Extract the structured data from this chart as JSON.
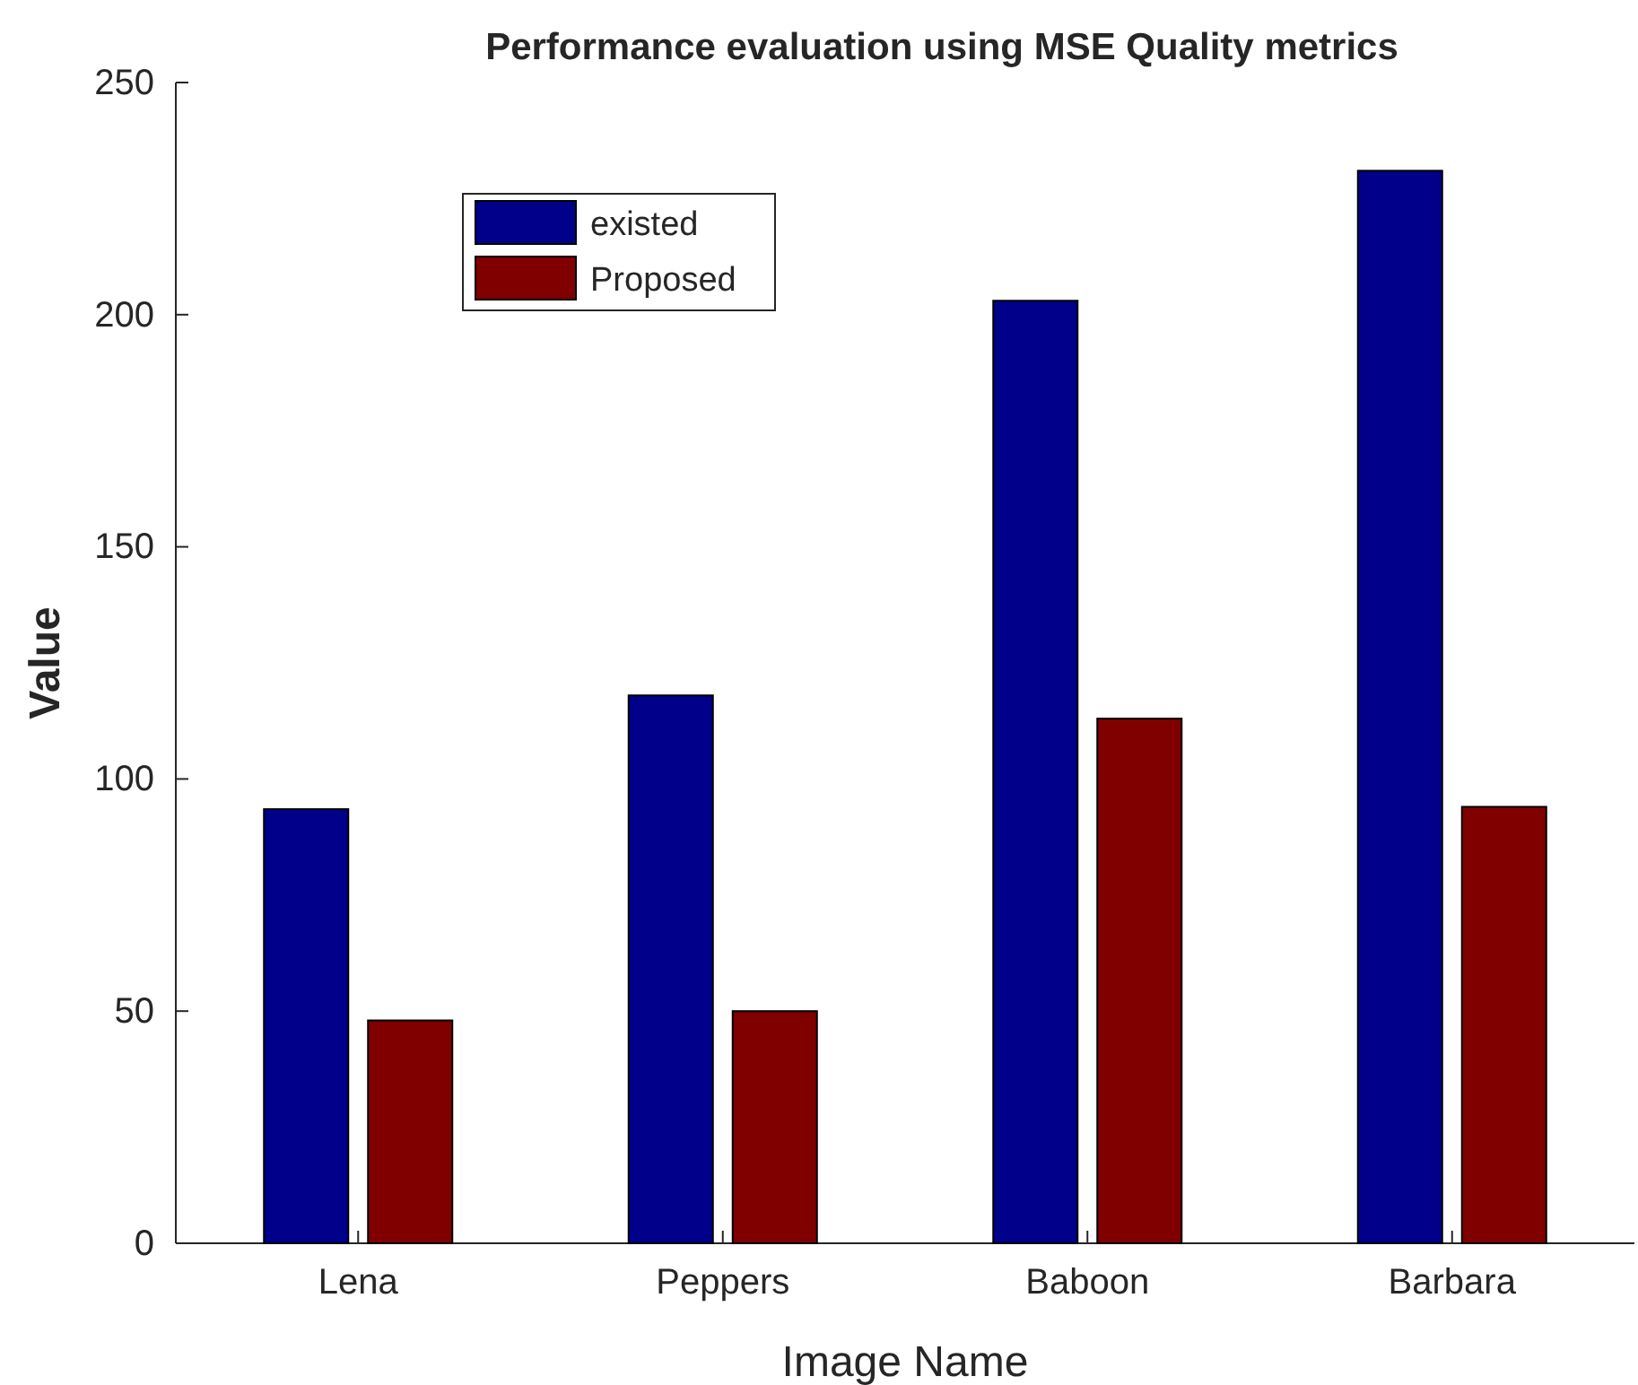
{
  "chart_data": {
    "type": "bar",
    "title": "Performance evaluation using MSE Quality metrics",
    "xlabel": "Image Name",
    "ylabel": "Value",
    "categories": [
      "Lena",
      "Peppers",
      "Baboon",
      "Barbara"
    ],
    "series": [
      {
        "name": "existed",
        "color": "#00008b",
        "values": [
          93.5,
          118,
          203,
          231
        ]
      },
      {
        "name": "Proposed",
        "color": "#800000",
        "values": [
          48,
          50,
          113,
          94
        ]
      }
    ],
    "ylim": [
      0,
      250
    ],
    "yticks": [
      0,
      50,
      100,
      150,
      200,
      250
    ],
    "grid": false,
    "legend": "top left"
  }
}
